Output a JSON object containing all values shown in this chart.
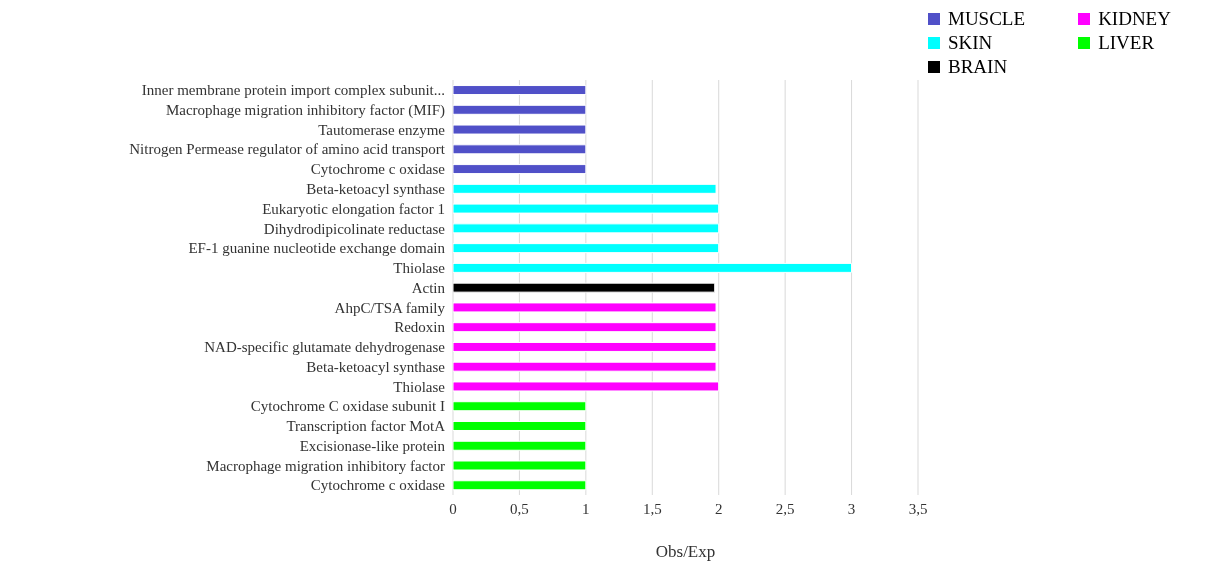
{
  "chart_data": {
    "type": "bar",
    "orientation": "horizontal",
    "stacked": true,
    "xlabel": "Obs/Exp",
    "categories": [
      "Inner membrane protein import complex subunit...",
      "Macrophage migration inhibitory factor (MIF)",
      "Tautomerase enzyme",
      "Nitrogen Permease regulator of amino acid transport",
      "Cytochrome c oxidase",
      "Beta-ketoacyl synthase",
      "Eukaryotic elongation factor 1",
      "Dihydrodipicolinate reductase",
      "EF-1 guanine nucleotide exchange domain",
      "Thiolase",
      "Actin",
      "AhpC/TSA family",
      "Redoxin",
      "NAD-specific glutamate dehydrogenase",
      "Beta-ketoacyl synthase",
      "Thiolase",
      "Cytochrome C oxidase subunit I",
      "Transcription factor MotA",
      "Excisionase-like protein",
      "Macrophage migration inhibitory factor",
      "Cytochrome c oxidase"
    ],
    "series": [
      {
        "name": "MUSCLE",
        "color": "#5050c8",
        "values": [
          1,
          1,
          1,
          1,
          1,
          null,
          null,
          null,
          null,
          null,
          null,
          null,
          null,
          null,
          null,
          null,
          null,
          null,
          null,
          null,
          null
        ]
      },
      {
        "name": "SKIN",
        "color": "#00ffff",
        "values": [
          null,
          null,
          null,
          null,
          null,
          1.98,
          2,
          2,
          2,
          3,
          null,
          null,
          null,
          null,
          null,
          null,
          null,
          null,
          null,
          null,
          null
        ]
      },
      {
        "name": "BRAIN",
        "color": "#000000",
        "values": [
          null,
          null,
          null,
          null,
          null,
          null,
          null,
          null,
          null,
          null,
          1.97,
          null,
          null,
          null,
          null,
          null,
          null,
          null,
          null,
          null,
          null
        ]
      },
      {
        "name": "KIDNEY",
        "color": "#ff00ff",
        "values": [
          null,
          null,
          null,
          null,
          null,
          null,
          null,
          null,
          null,
          null,
          null,
          1.98,
          1.98,
          1.98,
          1.98,
          2,
          null,
          null,
          null,
          null,
          null
        ]
      },
      {
        "name": "LIVER",
        "color": "#00ff00",
        "values": [
          null,
          null,
          null,
          null,
          null,
          null,
          null,
          null,
          null,
          null,
          null,
          null,
          null,
          null,
          null,
          null,
          1,
          1,
          1,
          1,
          1
        ]
      }
    ],
    "xlim": [
      0,
      3.5
    ],
    "xticks": [
      {
        "value": 0,
        "label": "0"
      },
      {
        "value": 0.5,
        "label": "0,5"
      },
      {
        "value": 1,
        "label": "1"
      },
      {
        "value": 1.5,
        "label": "1,5"
      },
      {
        "value": 2,
        "label": "2"
      },
      {
        "value": 2.5,
        "label": "2,5"
      },
      {
        "value": 3,
        "label": "3"
      },
      {
        "value": 3.5,
        "label": "3,5"
      }
    ],
    "grid": "x",
    "legend": "top right"
  }
}
